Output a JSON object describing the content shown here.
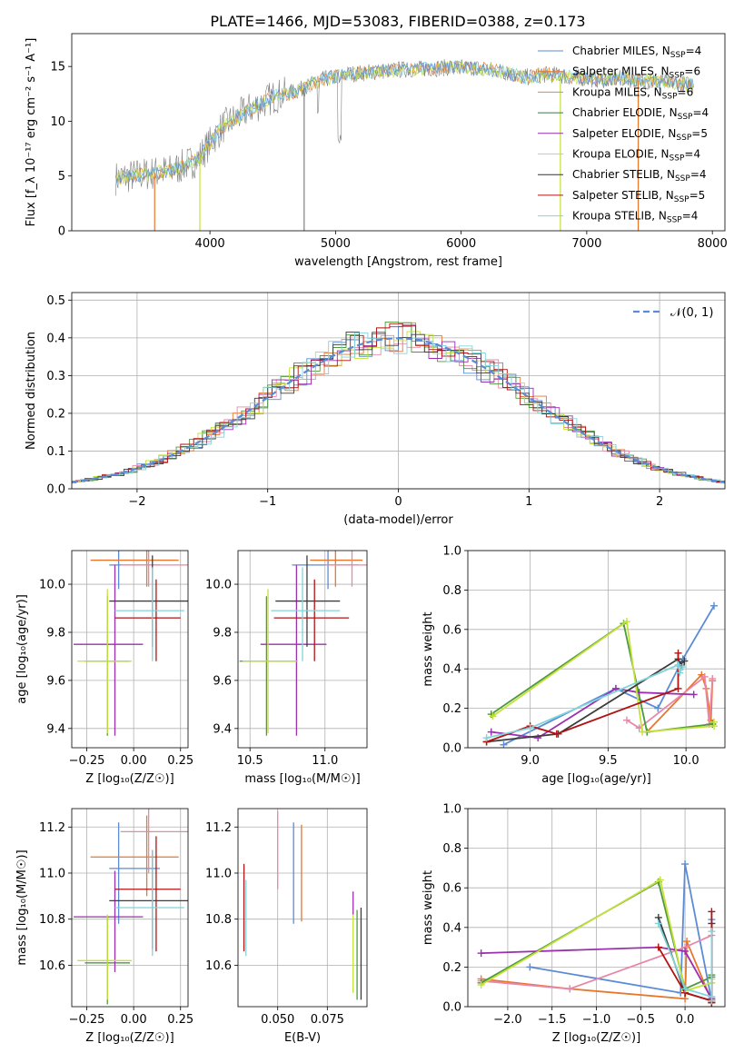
{
  "figure_title": "PLATE=1466, MJD=53083, FIBERID=0388, z=0.173",
  "colors": {
    "chabrier_miles": "#4c72b0",
    "salpeter_miles": "#e07b39",
    "kroupa_miles": "#d98c3a",
    "chabrier_elodie": "#3a7a45",
    "salpeter_elodie": "#8e2ea8",
    "kroupa_elodie": "#c8e04a",
    "chabrier_stelib": "#333333",
    "salpeter_stelib": "#b01515",
    "kroupa_stelib": "#7fd6dd",
    "data_spectrum": "#808080",
    "gaussian": "#5b8bd6"
  },
  "chart_data": [
    {
      "id": "spectrum",
      "type": "line",
      "xlabel": "wavelength [Angstrom, rest frame]",
      "ylabel": "Flux [f_λ 10⁻¹⁷ erg cm⁻² s⁻¹ A⁻¹]",
      "xlim": [
        2900,
        8100
      ],
      "ylim": [
        0,
        18
      ],
      "xticks": [
        4000,
        5000,
        6000,
        7000,
        8000
      ],
      "yticks": [
        0,
        5,
        10,
        15
      ],
      "grid": false,
      "legend": "upper right",
      "legend_entries": [
        "Chabrier MILES, N_SSP=4",
        "Salpeter MILES, N_SSP=6",
        "Kroupa MILES, N_SSP=6",
        "Chabrier ELODIE, N_SSP=4",
        "Salpeter ELODIE, N_SSP=5",
        "Kroupa ELODIE, N_SSP=4",
        "Chabrier STELIB, N_SSP=4",
        "Salpeter STELIB, N_SSP=5",
        "Kroupa STELIB, N_SSP=4"
      ],
      "approx_continuum": {
        "x": [
          3250,
          3500,
          3700,
          3900,
          4100,
          4300,
          4500,
          4700,
          4900,
          5100,
          5300,
          5500,
          5700,
          5900,
          6100,
          6300,
          6500,
          6700,
          6900,
          7100,
          7300,
          7500,
          7700,
          7850
        ],
        "y": [
          4.8,
          5.2,
          5.5,
          6.5,
          9.5,
          11.0,
          12.2,
          12.8,
          13.8,
          14.3,
          14.5,
          14.7,
          14.8,
          14.9,
          14.9,
          14.6,
          14.0,
          14.3,
          14.0,
          13.8,
          13.9,
          13.6,
          13.5,
          13.3
        ]
      }
    },
    {
      "id": "residuals",
      "type": "line",
      "xlabel": "(data-model)/error",
      "ylabel": "Normed distribution",
      "xlim": [
        -2.5,
        2.5
      ],
      "ylim": [
        0,
        0.52
      ],
      "xticks": [
        -2,
        -1,
        0,
        1,
        2
      ],
      "yticks": [
        0.0,
        0.1,
        0.2,
        0.3,
        0.4,
        0.5
      ],
      "grid": true,
      "legend": "upper right",
      "legend_entries": [
        "𝒩(0, 1)"
      ]
    },
    {
      "id": "age_vs_Z",
      "type": "scatter",
      "xlabel": "Z [log₁₀(Z/Z☉)]",
      "ylabel": "age  [log₁₀(age/yr)]",
      "xlim": [
        -0.33,
        0.29
      ],
      "ylim": [
        9.32,
        10.14
      ],
      "xticks": [
        -0.25,
        0.0,
        0.25
      ],
      "yticks": [
        9.4,
        9.6,
        9.8,
        10.0
      ],
      "grid": true
    },
    {
      "id": "age_vs_mass",
      "type": "scatter",
      "xlabel": "mass [log₁₀(M/M☉)]",
      "ylabel": "",
      "xlim": [
        10.42,
        11.28
      ],
      "ylim": [
        9.32,
        10.14
      ],
      "xticks": [
        10.5,
        11.0
      ],
      "yticks": [
        9.4,
        9.6,
        9.8,
        10.0
      ],
      "grid": true
    },
    {
      "id": "mass_weight_vs_age",
      "type": "line",
      "xlabel": "age  [log₁₀(age/yr)]",
      "ylabel": "mass weight",
      "xlim": [
        8.6,
        10.25
      ],
      "ylim": [
        0,
        1
      ],
      "xticks": [
        9.0,
        9.5,
        10.0
      ],
      "yticks": [
        0.0,
        0.2,
        0.4,
        0.6,
        0.8,
        1.0
      ],
      "grid": true
    },
    {
      "id": "mass_vs_Z",
      "type": "scatter",
      "xlabel": "Z [log₁₀(Z/Z☉)]",
      "ylabel": "mass [log₁₀(M/M☉)]",
      "xlim": [
        -0.33,
        0.29
      ],
      "ylim": [
        10.42,
        11.28
      ],
      "xticks": [
        -0.25,
        0.0,
        0.25
      ],
      "yticks": [
        10.6,
        10.8,
        11.0,
        11.2
      ],
      "grid": true
    },
    {
      "id": "mass_vs_ebv",
      "type": "scatter",
      "xlabel": "E(B-V)",
      "ylabel": "",
      "xlim": [
        0.03,
        0.095
      ],
      "ylim": [
        10.42,
        11.28
      ],
      "xticks": [
        0.05,
        0.075
      ],
      "yticks": [
        10.6,
        10.8,
        11.0,
        11.2
      ],
      "grid": true
    },
    {
      "id": "mass_weight_vs_Z",
      "type": "line",
      "xlabel": "Z [log₁₀(Z/Z☉)]",
      "ylabel": "mass weight",
      "xlim": [
        -2.45,
        0.45
      ],
      "ylim": [
        0,
        1
      ],
      "xticks": [
        -2.0,
        -1.5,
        -1.0,
        -0.5,
        0.0
      ],
      "yticks": [
        0.0,
        0.2,
        0.4,
        0.6,
        0.8,
        1.0
      ],
      "grid": true
    }
  ],
  "models": [
    {
      "name": "Chabrier MILES",
      "color": "#5b8bd6",
      "Z": -0.08,
      "Zlo": 0.05,
      "Zhi": 0.22,
      "age": 10.08,
      "agelo": 0.1,
      "agehi": 0.08,
      "mass": 11.02,
      "masslo": 0.24,
      "masshi": 0.2,
      "ebv": 0.058,
      "ebvlo_m": 10.78,
      "ebvhi_m": 11.22,
      "sfh_age": [
        8.83,
        9.55,
        9.82,
        9.98,
        10.18
      ],
      "sfh_w": [
        0.015,
        0.3,
        0.2,
        0.45,
        0.72
      ],
      "sfh_Z": [
        -1.75,
        -0.05,
        0.0,
        0.3,
        0.3
      ],
      "sfh_Zw": [
        0.2,
        0.07,
        0.72,
        0.03,
        0.44
      ]
    },
    {
      "name": "Salpeter MILES",
      "color": "#e8772e",
      "Z": 0.07,
      "Zlo": 0.3,
      "Zhi": 0.17,
      "age": 10.1,
      "agelo": 0.11,
      "agehi": 0.12,
      "mass": 11.07,
      "masslo": 0.17,
      "masshi": 0.18,
      "ebv": 0.062,
      "ebvlo_m": 10.79,
      "ebvhi_m": 11.21,
      "sfh_age": [
        9.75,
        10.1,
        10.13,
        10.16,
        10.17
      ],
      "sfh_w": [
        0.08,
        0.37,
        0.3,
        0.14,
        0.34
      ],
      "sfh_Z": [
        -2.3,
        -1.3,
        0.0,
        0.02,
        0.3
      ],
      "sfh_Zw": [
        0.14,
        0.09,
        0.04,
        0.33,
        0.03
      ]
    },
    {
      "name": "Kroupa MILES",
      "color": "#e887a8",
      "Z": 0.08,
      "Zlo": 0.15,
      "Zhi": 0.21,
      "age": 10.08,
      "agelo": 0.09,
      "agehi": 0.1,
      "mass": 11.18,
      "masslo": 0.18,
      "masshi": 0.18,
      "ebv": 0.05,
      "ebvlo_m": 10.93,
      "ebvhi_m": 11.27,
      "sfh_age": [
        9.62,
        9.7,
        10.12,
        10.15,
        10.17
      ],
      "sfh_w": [
        0.14,
        0.1,
        0.36,
        0.12,
        0.35
      ],
      "sfh_Z": [
        -2.3,
        -1.3,
        0.0,
        0.3,
        0.3
      ],
      "sfh_Zw": [
        0.13,
        0.09,
        0.3,
        0.36,
        0.05
      ]
    },
    {
      "name": "Chabrier ELODIE",
      "color": "#4c9a3c",
      "Z": -0.14,
      "Zlo": 0.12,
      "Zhi": 0.12,
      "age": 9.68,
      "agelo": 0.31,
      "agehi": 0.27,
      "mass": 10.61,
      "masslo": 0.18,
      "masshi": 0.2,
      "ebv": 0.09,
      "ebvlo_m": 10.45,
      "ebvhi_m": 10.84,
      "sfh_age": [
        8.75,
        9.6,
        9.75,
        10.17,
        10.17
      ],
      "sfh_w": [
        0.17,
        0.63,
        0.08,
        0.12,
        0.12
      ],
      "sfh_Z": [
        -2.3,
        -0.3,
        0.0,
        0.3,
        0.3
      ],
      "sfh_Zw": [
        0.12,
        0.63,
        0.09,
        0.15,
        0.16
      ]
    },
    {
      "name": "Salpeter ELODIE",
      "color": "#9b2fae",
      "Z": -0.1,
      "Zlo": 0.22,
      "Zhi": 0.15,
      "age": 9.75,
      "agelo": 0.38,
      "agehi": 0.33,
      "mass": 10.81,
      "masslo": 0.24,
      "masshi": 0.2,
      "ebv": 0.088,
      "ebvlo_m": 10.82,
      "ebvhi_m": 10.92,
      "sfh_age": [
        8.75,
        9.05,
        9.55,
        9.7,
        10.05
      ],
      "sfh_w": [
        0.08,
        0.05,
        0.3,
        0.28,
        0.27
      ],
      "sfh_Z": [
        -2.3,
        -0.3,
        0.0,
        0.3,
        0.3
      ],
      "sfh_Zw": [
        0.27,
        0.3,
        0.28,
        0.04,
        0.03
      ]
    },
    {
      "name": "Kroupa ELODIE",
      "color": "#c5e03a",
      "Z": -0.14,
      "Zlo": 0.16,
      "Zhi": 0.13,
      "age": 9.68,
      "agelo": 0.3,
      "agehi": 0.3,
      "mass": 10.62,
      "masslo": 0.17,
      "masshi": 0.2,
      "ebv": 0.088,
      "ebvlo_m": 10.48,
      "ebvhi_m": 10.82,
      "sfh_age": [
        8.76,
        9.62,
        9.72,
        10.18,
        10.18
      ],
      "sfh_w": [
        0.16,
        0.64,
        0.08,
        0.11,
        0.13
      ],
      "sfh_Z": [
        -2.3,
        -0.28,
        0.0,
        0.3,
        0.3
      ],
      "sfh_Zw": [
        0.11,
        0.64,
        0.08,
        0.12,
        0.14
      ]
    },
    {
      "name": "Chabrier STELIB",
      "color": "#3d3d3d",
      "Z": 0.1,
      "Zlo": 0.23,
      "Zhi": 0.19,
      "age": 9.93,
      "agelo": 0.19,
      "agehi": 0.19,
      "mass": 10.88,
      "masslo": 0.21,
      "masshi": 0.22,
      "ebv": 0.092,
      "ebvlo_m": 10.45,
      "ebvhi_m": 10.85,
      "sfh_age": [
        8.72,
        9.18,
        9.95,
        9.97,
        9.99
      ],
      "sfh_w": [
        0.03,
        0.07,
        0.45,
        0.42,
        0.44
      ],
      "sfh_Z": [
        -0.3,
        0.0,
        0.3,
        0.3,
        0.3
      ],
      "sfh_Zw": [
        0.45,
        0.07,
        0.03,
        0.42,
        0.02
      ]
    },
    {
      "name": "Salpeter STELIB",
      "color": "#b21212",
      "Z": 0.12,
      "Zlo": 0.22,
      "Zhi": 0.13,
      "age": 9.86,
      "agelo": 0.18,
      "agehi": 0.16,
      "mass": 10.93,
      "masslo": 0.27,
      "masshi": 0.23,
      "ebv": 0.033,
      "ebvlo_m": 10.66,
      "ebvhi_m": 11.04,
      "sfh_age": [
        8.72,
        9.0,
        9.17,
        9.95,
        9.95
      ],
      "sfh_w": [
        0.03,
        0.11,
        0.07,
        0.3,
        0.48
      ],
      "sfh_Z": [
        -0.3,
        0.0,
        0.3,
        0.3,
        0.3
      ],
      "sfh_Zw": [
        0.3,
        0.07,
        0.03,
        0.48,
        0.02
      ]
    },
    {
      "name": "Kroupa STELIB",
      "color": "#80d4db",
      "Z": 0.1,
      "Zlo": 0.2,
      "Zhi": 0.17,
      "age": 9.89,
      "agelo": 0.21,
      "agehi": 0.18,
      "mass": 10.85,
      "masslo": 0.21,
      "masshi": 0.25,
      "ebv": 0.034,
      "ebvlo_m": 10.64,
      "ebvhi_m": 10.97,
      "sfh_age": [
        8.72,
        9.0,
        9.95,
        9.96,
        9.98
      ],
      "sfh_w": [
        0.05,
        0.1,
        0.42,
        0.38,
        0.41
      ],
      "sfh_Z": [
        -0.3,
        0.0,
        0.3,
        0.3,
        0.3
      ],
      "sfh_Zw": [
        0.42,
        0.09,
        0.05,
        0.38,
        0.03
      ]
    }
  ]
}
